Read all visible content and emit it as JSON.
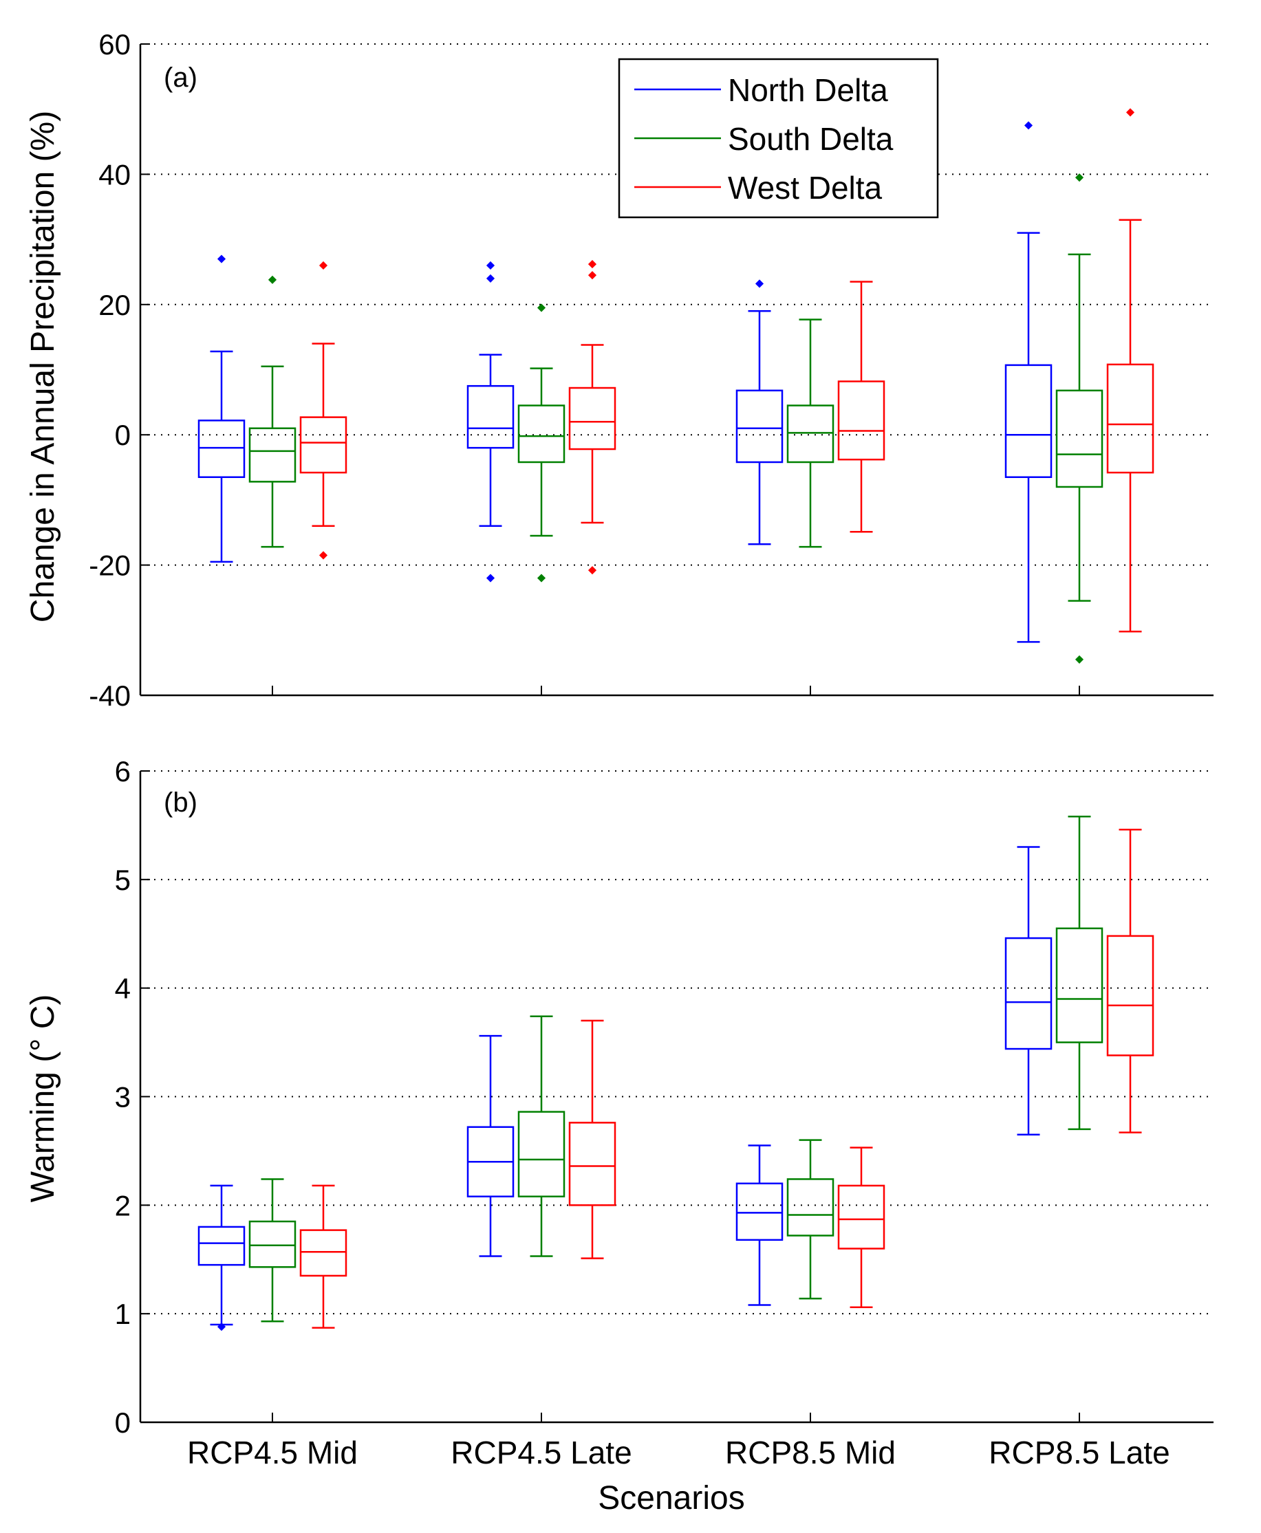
{
  "figure": {
    "xlabel": "Scenarios",
    "colors": {
      "North Delta": "#0000ff",
      "South Delta": "#008000",
      "West Delta": "#ff0000"
    }
  },
  "chart_data": [
    {
      "type": "box",
      "panel_label": "(a)",
      "title": "",
      "ylabel": "Change in Annual Precipitation (%)",
      "ylim": [
        -40,
        60
      ],
      "yticks": [
        "-40",
        "-20",
        "0",
        "20",
        "40",
        "60"
      ],
      "categories": [
        "RCP4.5 Mid",
        "RCP4.5 Late",
        "RCP8.5 Mid",
        "RCP8.5 Late"
      ],
      "grid": "horizontal dotted",
      "legend": {
        "placement": "top-center",
        "entries": [
          "North Delta",
          "South Delta",
          "West Delta"
        ]
      },
      "series": [
        {
          "name": "North Delta",
          "color": "#0000ff",
          "boxes": [
            {
              "whisker_low": -19.5,
              "q1": -6.5,
              "median": -2,
              "q3": 2.2,
              "whisker_high": 12.8,
              "outliers": [
                27
              ]
            },
            {
              "whisker_low": -14,
              "q1": -2,
              "median": 1,
              "q3": 7.5,
              "whisker_high": 12.3,
              "outliers": [
                26,
                24,
                -22
              ]
            },
            {
              "whisker_low": -16.8,
              "q1": -4.2,
              "median": 1,
              "q3": 6.8,
              "whisker_high": 19,
              "outliers": [
                23.2
              ]
            },
            {
              "whisker_low": -31.8,
              "q1": -6.5,
              "median": 0,
              "q3": 10.7,
              "whisker_high": 31,
              "outliers": [
                47.5
              ]
            }
          ]
        },
        {
          "name": "South Delta",
          "color": "#008000",
          "boxes": [
            {
              "whisker_low": -17.2,
              "q1": -7.2,
              "median": -2.5,
              "q3": 1,
              "whisker_high": 10.5,
              "outliers": [
                23.8
              ]
            },
            {
              "whisker_low": -15.5,
              "q1": -4.2,
              "median": -0.2,
              "q3": 4.5,
              "whisker_high": 10.2,
              "outliers": [
                19.5,
                -22
              ]
            },
            {
              "whisker_low": -17.2,
              "q1": -4.2,
              "median": 0.3,
              "q3": 4.5,
              "whisker_high": 17.7,
              "outliers": []
            },
            {
              "whisker_low": -25.5,
              "q1": -8,
              "median": -3,
              "q3": 6.8,
              "whisker_high": 27.7,
              "outliers": [
                39.5,
                -34.5
              ]
            }
          ]
        },
        {
          "name": "West Delta",
          "color": "#ff0000",
          "boxes": [
            {
              "whisker_low": -14,
              "q1": -5.8,
              "median": -1.2,
              "q3": 2.7,
              "whisker_high": 14,
              "outliers": [
                26,
                -18.5
              ]
            },
            {
              "whisker_low": -13.5,
              "q1": -2.2,
              "median": 2,
              "q3": 7.2,
              "whisker_high": 13.8,
              "outliers": [
                26.2,
                24.5,
                -20.8
              ]
            },
            {
              "whisker_low": -14.9,
              "q1": -3.8,
              "median": 0.6,
              "q3": 8.2,
              "whisker_high": 23.5,
              "outliers": []
            },
            {
              "whisker_low": -30.2,
              "q1": -5.8,
              "median": 1.6,
              "q3": 10.8,
              "whisker_high": 33,
              "outliers": [
                49.5
              ]
            }
          ]
        }
      ]
    },
    {
      "type": "box",
      "panel_label": "(b)",
      "title": "",
      "ylabel": "Warming (° C)",
      "ylim": [
        0,
        6
      ],
      "yticks": [
        "0",
        "1",
        "2",
        "3",
        "4",
        "5",
        "6"
      ],
      "categories": [
        "RCP4.5 Mid",
        "RCP4.5 Late",
        "RCP8.5 Mid",
        "RCP8.5 Late"
      ],
      "grid": "horizontal dotted",
      "series": [
        {
          "name": "North Delta",
          "color": "#0000ff",
          "boxes": [
            {
              "whisker_low": 0.9,
              "q1": 1.45,
              "median": 1.65,
              "q3": 1.8,
              "whisker_high": 2.18,
              "outliers": [
                0.88
              ]
            },
            {
              "whisker_low": 1.53,
              "q1": 2.08,
              "median": 2.4,
              "q3": 2.72,
              "whisker_high": 3.56,
              "outliers": []
            },
            {
              "whisker_low": 1.08,
              "q1": 1.68,
              "median": 1.93,
              "q3": 2.2,
              "whisker_high": 2.55,
              "outliers": []
            },
            {
              "whisker_low": 2.65,
              "q1": 3.44,
              "median": 3.87,
              "q3": 4.46,
              "whisker_high": 5.3,
              "outliers": []
            }
          ]
        },
        {
          "name": "South Delta",
          "color": "#008000",
          "boxes": [
            {
              "whisker_low": 0.93,
              "q1": 1.43,
              "median": 1.63,
              "q3": 1.85,
              "whisker_high": 2.24,
              "outliers": []
            },
            {
              "whisker_low": 1.53,
              "q1": 2.08,
              "median": 2.42,
              "q3": 2.86,
              "whisker_high": 3.74,
              "outliers": []
            },
            {
              "whisker_low": 1.14,
              "q1": 1.72,
              "median": 1.91,
              "q3": 2.24,
              "whisker_high": 2.6,
              "outliers": []
            },
            {
              "whisker_low": 2.7,
              "q1": 3.5,
              "median": 3.9,
              "q3": 4.55,
              "whisker_high": 5.58,
              "outliers": []
            }
          ]
        },
        {
          "name": "West Delta",
          "color": "#ff0000",
          "boxes": [
            {
              "whisker_low": 0.87,
              "q1": 1.35,
              "median": 1.57,
              "q3": 1.77,
              "whisker_high": 2.18,
              "outliers": []
            },
            {
              "whisker_low": 1.51,
              "q1": 2.0,
              "median": 2.36,
              "q3": 2.76,
              "whisker_high": 3.7,
              "outliers": []
            },
            {
              "whisker_low": 1.06,
              "q1": 1.6,
              "median": 1.87,
              "q3": 2.18,
              "whisker_high": 2.53,
              "outliers": []
            },
            {
              "whisker_low": 2.67,
              "q1": 3.38,
              "median": 3.84,
              "q3": 4.48,
              "whisker_high": 5.46,
              "outliers": []
            }
          ]
        }
      ]
    }
  ]
}
